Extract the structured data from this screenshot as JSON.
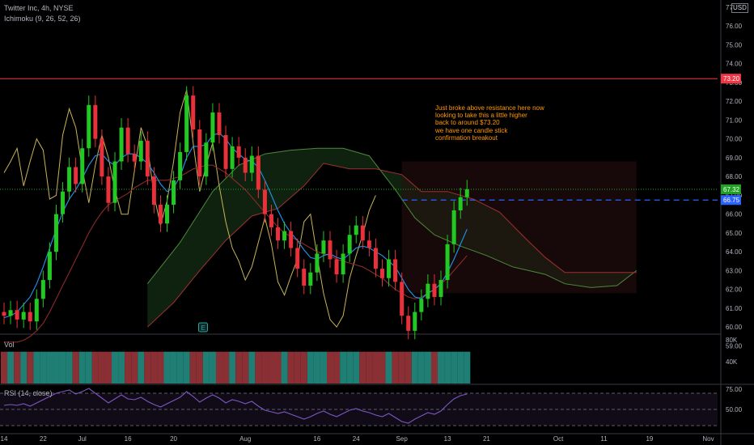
{
  "header": {
    "symbol_line": "Twitter Inc, 4h, NYSE",
    "indicator_line": "Ichimoku (9, 26, 52, 26)",
    "currency_badge": "USD"
  },
  "annotation": {
    "lines": [
      "Just broke above resistance here now",
      "looking to take this a little higher",
      "back to around $73.20",
      "we have one candle stick",
      "confirmation breakout"
    ]
  },
  "colors": {
    "bull": "#22c922",
    "bear": "#e8313b",
    "resistance": "#f23645",
    "current_price_line": "#21a121",
    "dashed_level": "#2962ff",
    "tenkan": "#2196f3",
    "kijun": "#8c2b2b",
    "chikou": "#c9b458",
    "span_a": "#4c8a3a",
    "span_b": "#a03030",
    "rsi": "#7e57c2"
  },
  "chart_data": [
    {
      "type": "candlestick",
      "title": "Twitter Inc, 4h, NYSE",
      "indicator": "Ichimoku (9, 26, 52, 26)",
      "ylim": [
        58.5,
        77.5
      ],
      "y_ticks": [
        "76.00",
        "75.00",
        "74.00",
        "73.00",
        "72.00",
        "71.00",
        "70.00",
        "69.00",
        "68.00",
        "67.00",
        "66.00",
        "65.00",
        "64.00",
        "63.00",
        "62.00",
        "61.00",
        "60.00",
        "59.00"
      ],
      "y_tick_values": [
        76,
        75,
        74,
        73,
        72,
        71,
        70,
        69,
        68,
        67,
        66,
        65,
        64,
        63,
        62,
        61,
        60,
        59
      ],
      "y_top_label": "77",
      "x_ticks": [
        {
          "label": "14",
          "t": 0
        },
        {
          "label": "22",
          "t": 6
        },
        {
          "label": "Jul",
          "t": 12
        },
        {
          "label": "16",
          "t": 19
        },
        {
          "label": "20",
          "t": 26
        },
        {
          "label": "Aug",
          "t": 37
        },
        {
          "label": "16",
          "t": 48
        },
        {
          "label": "24",
          "t": 54
        },
        {
          "label": "Sep",
          "t": 61
        },
        {
          "label": "13",
          "t": 68
        },
        {
          "label": "21",
          "t": 74
        },
        {
          "label": "Oct",
          "t": 85
        },
        {
          "label": "11",
          "t": 92
        },
        {
          "label": "19",
          "t": 99
        },
        {
          "label": "Nov",
          "t": 108
        }
      ],
      "price_labels": [
        {
          "label": "73.20",
          "value": 73.2,
          "color": "#f23645"
        },
        {
          "label": "67.32",
          "value": 67.32,
          "color": "#21a121"
        },
        {
          "label": "66.75",
          "value": 66.75,
          "color": "#2962ff"
        }
      ],
      "resistance_level": 73.2,
      "dashed_level": 66.75,
      "last_price": 67.32,
      "candles": [
        {
          "o": 60.8,
          "c": 60.6
        },
        {
          "o": 60.6,
          "c": 60.9
        },
        {
          "o": 60.9,
          "c": 60.4
        },
        {
          "o": 60.4,
          "c": 60.8
        },
        {
          "o": 60.8,
          "c": 60.3
        },
        {
          "o": 60.3,
          "c": 61.5
        },
        {
          "o": 61.5,
          "c": 62.5
        },
        {
          "o": 62.5,
          "c": 64.0
        },
        {
          "o": 64.0,
          "c": 66.0
        },
        {
          "o": 66.0,
          "c": 67.2
        },
        {
          "o": 67.2,
          "c": 68.5
        },
        {
          "o": 68.5,
          "c": 67.6
        },
        {
          "o": 67.6,
          "c": 69.5
        },
        {
          "o": 69.5,
          "c": 71.8
        },
        {
          "o": 71.8,
          "c": 70.0
        },
        {
          "o": 70.0,
          "c": 68.0
        },
        {
          "o": 68.0,
          "c": 66.6
        },
        {
          "o": 66.6,
          "c": 68.8
        },
        {
          "o": 68.8,
          "c": 70.6
        },
        {
          "o": 70.6,
          "c": 69.2
        },
        {
          "o": 69.2,
          "c": 68.8
        },
        {
          "o": 68.8,
          "c": 69.9
        },
        {
          "o": 69.9,
          "c": 68.0
        },
        {
          "o": 68.0,
          "c": 66.5
        },
        {
          "o": 66.5,
          "c": 65.5
        },
        {
          "o": 65.5,
          "c": 66.5
        },
        {
          "o": 66.5,
          "c": 67.8
        },
        {
          "o": 67.8,
          "c": 69.3
        },
        {
          "o": 69.3,
          "c": 72.3
        },
        {
          "o": 72.3,
          "c": 70.5
        },
        {
          "o": 70.5,
          "c": 68.0
        },
        {
          "o": 68.0,
          "c": 69.8
        },
        {
          "o": 69.8,
          "c": 71.4
        },
        {
          "o": 71.4,
          "c": 70.2
        },
        {
          "o": 70.2,
          "c": 68.4
        },
        {
          "o": 68.4,
          "c": 69.6
        },
        {
          "o": 69.6,
          "c": 69.0
        },
        {
          "o": 69.0,
          "c": 68.2
        },
        {
          "o": 68.2,
          "c": 69.1
        },
        {
          "o": 69.1,
          "c": 67.3
        },
        {
          "o": 67.3,
          "c": 66.0
        },
        {
          "o": 66.0,
          "c": 65.3
        },
        {
          "o": 65.3,
          "c": 64.6
        },
        {
          "o": 64.6,
          "c": 65.1
        },
        {
          "o": 65.1,
          "c": 64.2
        },
        {
          "o": 64.2,
          "c": 63.1
        },
        {
          "o": 63.1,
          "c": 62.2
        },
        {
          "o": 62.2,
          "c": 62.9
        },
        {
          "o": 62.9,
          "c": 63.9
        },
        {
          "o": 63.9,
          "c": 64.6
        },
        {
          "o": 64.6,
          "c": 63.6
        },
        {
          "o": 63.6,
          "c": 62.8
        },
        {
          "o": 62.8,
          "c": 63.9
        },
        {
          "o": 63.9,
          "c": 64.9
        },
        {
          "o": 64.9,
          "c": 65.4
        },
        {
          "o": 65.4,
          "c": 64.6
        },
        {
          "o": 64.6,
          "c": 64.2
        },
        {
          "o": 64.2,
          "c": 63.1
        },
        {
          "o": 63.1,
          "c": 62.6
        },
        {
          "o": 62.6,
          "c": 63.6
        },
        {
          "o": 63.6,
          "c": 62.4
        },
        {
          "o": 62.4,
          "c": 60.6
        },
        {
          "o": 60.6,
          "c": 59.8
        },
        {
          "o": 59.8,
          "c": 60.8
        },
        {
          "o": 60.8,
          "c": 61.5
        },
        {
          "o": 61.5,
          "c": 62.3
        },
        {
          "o": 62.3,
          "c": 61.6
        },
        {
          "o": 61.6,
          "c": 62.5
        },
        {
          "o": 62.5,
          "c": 64.4
        },
        {
          "o": 64.4,
          "c": 66.2
        },
        {
          "o": 66.2,
          "c": 66.9
        },
        {
          "o": 66.9,
          "c": 67.32
        }
      ],
      "tenkan": [
        60.5,
        60.6,
        60.8,
        61.2,
        61.6,
        62.3,
        63.2,
        64.2,
        65.2,
        66.1,
        66.8,
        67.3,
        67.9,
        68.6,
        69.1,
        69.2,
        68.8,
        68.6,
        69.0,
        69.2,
        69.2,
        69.0,
        68.7,
        68.2,
        67.6,
        67.2,
        67.4,
        68.0,
        69.0,
        69.6,
        69.6,
        69.7,
        70.2,
        70.3,
        70.0,
        69.5,
        69.2,
        68.9,
        68.8,
        68.5,
        67.8,
        67.0,
        66.2,
        65.5,
        65.0,
        64.6,
        64.1,
        63.7,
        63.6,
        63.8,
        63.9,
        63.7,
        63.6,
        63.9,
        64.2,
        64.3,
        64.2,
        64.0,
        63.8,
        63.5,
        63.2,
        62.6,
        62.0,
        61.6,
        61.5,
        61.8,
        62.0,
        62.3,
        62.9,
        63.6,
        64.4,
        65.2
      ],
      "kijun": [
        59.2,
        59.2,
        59.2,
        59.3,
        59.5,
        59.8,
        60.2,
        60.8,
        61.5,
        62.2,
        62.9,
        63.6,
        64.3,
        65.0,
        65.6,
        66.1,
        66.5,
        66.7,
        66.9,
        67.1,
        67.4,
        67.6,
        67.8,
        67.8,
        67.8,
        67.8,
        67.9,
        68.0,
        68.2,
        68.4,
        68.5,
        68.6,
        68.6,
        68.4,
        68.2,
        67.9,
        67.6,
        67.3,
        66.9,
        66.5,
        66.1,
        65.7,
        65.3,
        65.0,
        64.8,
        64.6,
        64.4,
        64.2,
        64.0,
        63.9,
        63.8,
        63.6,
        63.5,
        63.4,
        63.3,
        63.2,
        63.0,
        62.8,
        62.6,
        62.3,
        62.0,
        61.8,
        61.6,
        61.5,
        61.6,
        61.8,
        62.0,
        62.3,
        62.6,
        63.0,
        63.4,
        63.8
      ],
      "chikou": [
        68.2,
        68.8,
        69.5,
        67.5,
        68.8,
        70.0,
        69.4,
        66.8,
        67.0,
        70.2,
        71.6,
        70.6,
        68.4,
        66.6,
        68.6,
        70.2,
        69.0,
        67.3,
        66.0,
        66.0,
        68.3,
        70.6,
        69.6,
        67.0,
        65.4,
        66.7,
        68.8,
        71.4,
        72.6,
        69.8,
        67.2,
        68.6,
        69.8,
        67.5,
        65.6,
        64.2,
        63.5,
        62.5,
        63.2,
        64.5,
        65.8,
        64.4,
        62.4,
        61.7,
        62.7,
        63.6,
        65.6,
        66.0,
        63.8,
        61.8,
        60.4,
        60.0,
        60.6,
        62.6,
        63.8,
        64.9,
        66.2,
        67.0
      ],
      "span_a": [
        {
          "t": 22,
          "v": 62.3
        },
        {
          "t": 27,
          "v": 64.5
        },
        {
          "t": 32,
          "v": 67.2
        },
        {
          "t": 36,
          "v": 68.6
        },
        {
          "t": 40,
          "v": 69.2
        },
        {
          "t": 44,
          "v": 69.4
        },
        {
          "t": 48,
          "v": 69.5
        },
        {
          "t": 52,
          "v": 69.5
        },
        {
          "t": 56,
          "v": 69.1
        },
        {
          "t": 60,
          "v": 67.3
        },
        {
          "t": 63,
          "v": 65.8
        },
        {
          "t": 66,
          "v": 64.9
        },
        {
          "t": 70,
          "v": 64.3
        },
        {
          "t": 74,
          "v": 63.8
        },
        {
          "t": 78,
          "v": 63.2
        },
        {
          "t": 83,
          "v": 62.8
        },
        {
          "t": 86,
          "v": 62.3
        },
        {
          "t": 90,
          "v": 62.1
        },
        {
          "t": 94,
          "v": 62.2
        },
        {
          "t": 97,
          "v": 63.0
        }
      ],
      "span_b": [
        {
          "t": 22,
          "v": 60.0
        },
        {
          "t": 26,
          "v": 61.3
        },
        {
          "t": 30,
          "v": 63.0
        },
        {
          "t": 34,
          "v": 64.6
        },
        {
          "t": 38,
          "v": 65.9
        },
        {
          "t": 42,
          "v": 66.3
        },
        {
          "t": 46,
          "v": 67.5
        },
        {
          "t": 49,
          "v": 68.7
        },
        {
          "t": 53,
          "v": 68.4
        },
        {
          "t": 57,
          "v": 68.4
        },
        {
          "t": 61,
          "v": 68.1
        },
        {
          "t": 64,
          "v": 67.2
        },
        {
          "t": 68,
          "v": 67.2
        },
        {
          "t": 72,
          "v": 66.8
        },
        {
          "t": 76,
          "v": 66.1
        },
        {
          "t": 80,
          "v": 64.7
        },
        {
          "t": 83,
          "v": 63.7
        },
        {
          "t": 86,
          "v": 62.9
        },
        {
          "t": 90,
          "v": 62.9
        },
        {
          "t": 94,
          "v": 62.9
        },
        {
          "t": 97,
          "v": 62.9
        }
      ]
    },
    {
      "type": "bar",
      "title": "Vol",
      "y_ticks": [
        "80K",
        "40K"
      ],
      "y_tick_values": [
        80000,
        40000
      ],
      "values": [
        58000,
        58000,
        58000,
        58000,
        58000,
        58000,
        58000,
        58000,
        58000,
        58000,
        58000,
        58000,
        58000,
        58000,
        58000,
        58000,
        58000,
        58000,
        58000,
        58000,
        58000,
        58000,
        58000,
        58000,
        58000,
        58000,
        58000,
        58000,
        58000,
        58000,
        58000,
        58000,
        58000,
        58000,
        58000,
        58000,
        58000,
        58000,
        58000,
        58000,
        58000,
        58000,
        58000,
        58000,
        58000,
        58000,
        58000,
        58000,
        58000,
        58000,
        58000,
        58000,
        58000,
        58000,
        58000,
        58000,
        58000,
        58000,
        58000,
        58000,
        58000,
        58000,
        58000,
        58000,
        58000,
        58000,
        58000,
        58000,
        58000,
        58000,
        58000,
        58000
      ]
    },
    {
      "type": "line",
      "title": "RSI (14, close)",
      "y_ticks": [
        "75.00",
        "50.00"
      ],
      "y_tick_values": [
        75,
        50
      ],
      "bands": [
        70,
        50,
        30
      ],
      "values": [
        55,
        56,
        55,
        57,
        54,
        58,
        62,
        66,
        70,
        72,
        74,
        69,
        72,
        76,
        70,
        64,
        58,
        63,
        68,
        63,
        62,
        65,
        60,
        56,
        53,
        57,
        61,
        65,
        72,
        66,
        59,
        64,
        68,
        64,
        58,
        62,
        60,
        57,
        60,
        54,
        49,
        47,
        45,
        47,
        44,
        41,
        38,
        41,
        45,
        48,
        44,
        41,
        45,
        49,
        51,
        48,
        46,
        43,
        41,
        45,
        40,
        35,
        33,
        38,
        42,
        46,
        44,
        48,
        56,
        63,
        67,
        69
      ]
    }
  ]
}
